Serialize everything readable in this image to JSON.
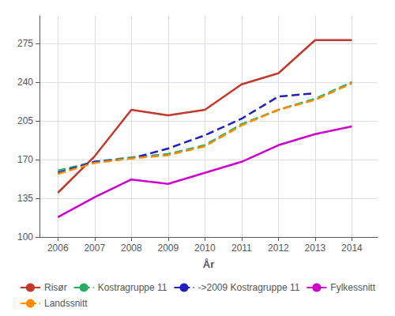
{
  "chart_data": {
    "type": "line",
    "xlabel": "År",
    "x": [
      2006,
      2007,
      2008,
      2009,
      2010,
      2011,
      2012,
      2013,
      2014
    ],
    "series": [
      {
        "name": "Risør",
        "color": "#c0392b",
        "line_style": "solid",
        "values": [
          140,
          173,
          215,
          210,
          215,
          238,
          248,
          278,
          278
        ]
      },
      {
        "name": "Kostragruppe 11",
        "color": "#27ae60",
        "line_style": "dashed",
        "values": [
          160,
          168,
          172,
          175,
          183,
          202,
          215,
          225,
          240
        ]
      },
      {
        "name": "->2009 Kostragruppe 11",
        "color": "#2020c0",
        "line_style": "dashed",
        "values": [
          158,
          168,
          171,
          180,
          192,
          207,
          227,
          230,
          null
        ]
      },
      {
        "name": "Fylkessnitt",
        "color": "#cc00cc",
        "line_style": "solid",
        "values": [
          118,
          136,
          152,
          148,
          158,
          168,
          183,
          193,
          200
        ]
      },
      {
        "name": "Landssnitt",
        "color": "#ff8c00",
        "line_style": "dashed",
        "values": [
          157,
          167,
          171,
          174,
          182,
          201,
          215,
          224,
          239
        ]
      }
    ],
    "xlim": [
      2005.5,
      2014.7
    ],
    "ylim": [
      100,
      300
    ],
    "xticks": [
      2006,
      2007,
      2008,
      2009,
      2010,
      2011,
      2012,
      2013,
      2014
    ],
    "yticks": [
      100,
      135,
      170,
      205,
      240,
      275
    ],
    "grid": true,
    "legend": "bottom"
  }
}
